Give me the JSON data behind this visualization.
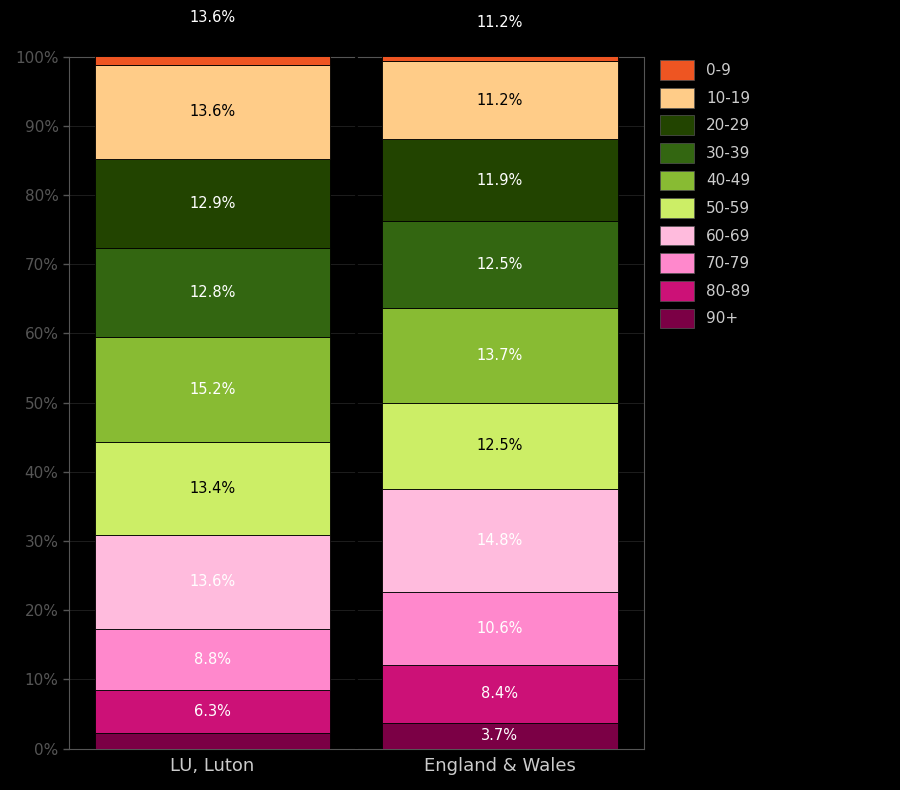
{
  "categories": [
    "LU, Luton",
    "England & Wales"
  ],
  "age_groups_bottom_to_top": [
    "90+",
    "80-89",
    "70-79",
    "60-69",
    "50-59",
    "40-49",
    "30-39",
    "20-29",
    "10-19",
    "0-9"
  ],
  "colors_bottom_to_top": [
    "#7b0045",
    "#cc1177",
    "#ff88cc",
    "#ffbbdd",
    "#ccee66",
    "#88bb33",
    "#336611",
    "#224400",
    "#ffcc88",
    "#ee5522"
  ],
  "luton_values": [
    2.2,
    6.3,
    8.8,
    13.6,
    13.4,
    15.2,
    12.8,
    12.9,
    13.6,
    13.6
  ],
  "ew_values": [
    3.7,
    8.4,
    10.6,
    14.8,
    12.5,
    13.7,
    12.5,
    11.9,
    11.2,
    11.2
  ],
  "background_color": "#000000",
  "text_color": "#cccccc",
  "ytick_labels": [
    "0%",
    "10%",
    "20%",
    "30%",
    "40%",
    "50%",
    "60%",
    "70%",
    "80%",
    "90%",
    "100%"
  ],
  "legend_labels_top_to_bottom": [
    "0-9",
    "10-19",
    "20-29",
    "30-39",
    "40-49",
    "50-59",
    "60-69",
    "70-79",
    "80-89",
    "90+"
  ],
  "legend_colors_top_to_bottom": [
    "#ee5522",
    "#ffcc88",
    "#224400",
    "#336611",
    "#88bb33",
    "#ccee66",
    "#ffbbdd",
    "#ff88cc",
    "#cc1177",
    "#7b0045"
  ],
  "label_colors": [
    "white",
    "white",
    "white",
    "white",
    "black",
    "white",
    "white",
    "white",
    "black",
    "white"
  ]
}
